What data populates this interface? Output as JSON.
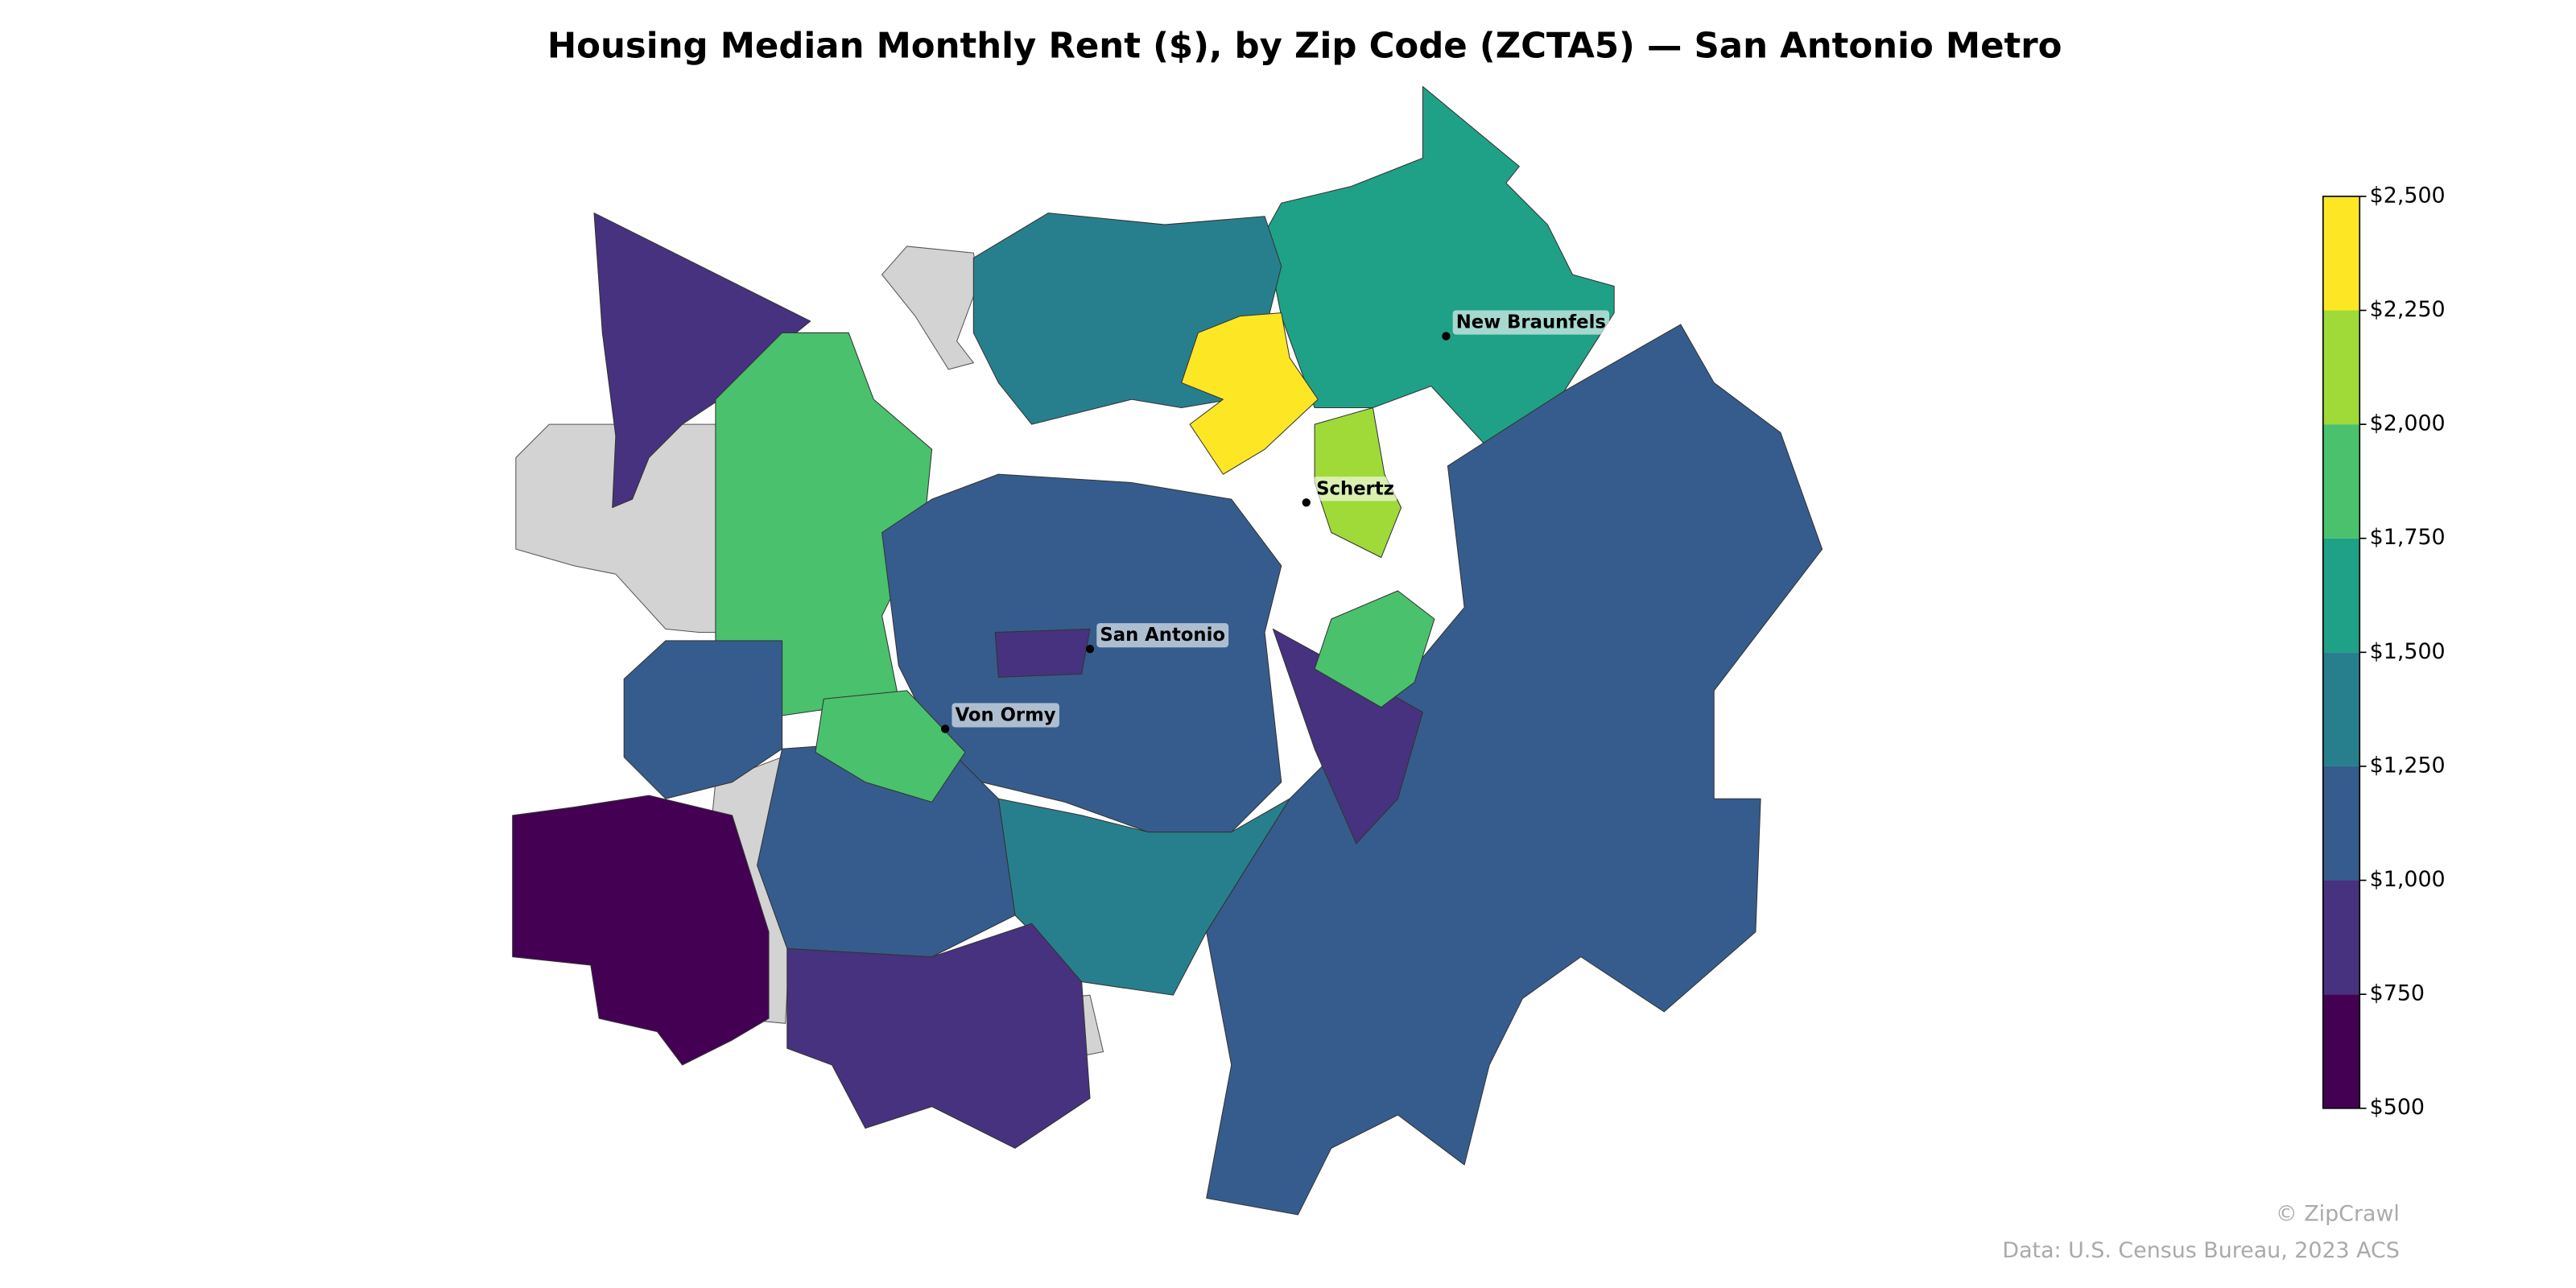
{
  "chart_data": {
    "type": "choropleth",
    "title": "Housing Median Monthly Rent ($), by Zip Code (ZCTA5) — San Antonio Metro",
    "values": [
      900,
      1650,
      1150,
      1400,
      2400,
      2100,
      1800,
      1150,
      900,
      1850,
      1400,
      900,
      650,
      1150,
      1100,
      1800,
      900
    ],
    "colors": [
      "#440154",
      "#46327e",
      "#365c8d",
      "#277f8e",
      "#1fa187",
      "#4ac16d",
      "#a0da39",
      "#fde725"
    ],
    "no_data_color": "#d3d3d3",
    "clim": [
      500,
      2500
    ],
    "ticks": [
      {
        "value": 500,
        "label": "$500"
      },
      {
        "value": 750,
        "label": "$750"
      },
      {
        "value": 1000,
        "label": "$1,000"
      },
      {
        "value": 1250,
        "label": "$1,250"
      },
      {
        "value": 1500,
        "label": "$1,500"
      },
      {
        "value": 1750,
        "label": "$1,750"
      },
      {
        "value": 2000,
        "label": "$2,000"
      },
      {
        "value": 2250,
        "label": "$2,250"
      },
      {
        "value": 2500,
        "label": "$2,500"
      }
    ],
    "cities": [
      "New Braunfels",
      "Schertz",
      "San Antonio",
      "Von Ormy"
    ],
    "credit": "© ZipCrawl",
    "source": "Data: U.S. Census Bureau, 2023 ACS"
  }
}
